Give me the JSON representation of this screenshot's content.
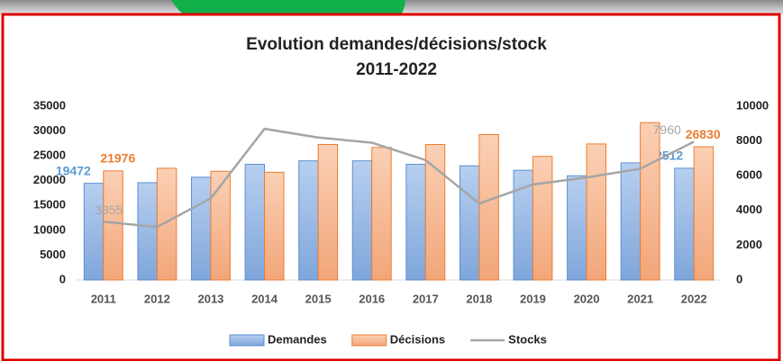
{
  "chart_data": {
    "type": "bar-line",
    "title": "Evolution  demandes/décisions/stock",
    "subtitle": "2011-2022",
    "categories": [
      "2011",
      "2012",
      "2013",
      "2014",
      "2015",
      "2016",
      "2017",
      "2018",
      "2019",
      "2020",
      "2021",
      "2022"
    ],
    "series": [
      {
        "name": "Demandes",
        "type": "bar",
        "color": "#8fb4e3",
        "edge": "#5b8fd0",
        "values": [
          19472,
          19600,
          20700,
          23300,
          24000,
          24000,
          23300,
          23000,
          22100,
          21000,
          23600,
          22512
        ],
        "value_labels": [
          "19472",
          null,
          null,
          null,
          null,
          null,
          null,
          null,
          null,
          null,
          null,
          "22512"
        ],
        "label_color": "#5b9bd5"
      },
      {
        "name": "Décisions",
        "type": "bar",
        "color": "#f4b183",
        "edge": "#ed7d31",
        "values": [
          21976,
          22500,
          21900,
          21700,
          27300,
          26700,
          27300,
          29300,
          24900,
          27400,
          31700,
          26830
        ],
        "value_labels": [
          "21976",
          null,
          null,
          null,
          null,
          null,
          null,
          null,
          null,
          null,
          null,
          "26830"
        ],
        "label_color": "#ed7d31"
      },
      {
        "name": "Stocks",
        "type": "line",
        "axis": "y2",
        "color": "#a5a5a5",
        "values": [
          3355,
          3050,
          4700,
          8700,
          8200,
          7900,
          6900,
          4400,
          5500,
          5900,
          6400,
          7960
        ],
        "value_labels": [
          "3355",
          null,
          null,
          null,
          null,
          null,
          null,
          null,
          null,
          null,
          null,
          "7960"
        ],
        "label_color": "#a5a5a5"
      }
    ],
    "ylim": [
      0,
      35000
    ],
    "yticks": [
      0,
      5000,
      10000,
      15000,
      20000,
      25000,
      30000,
      35000
    ],
    "y2lim": [
      0,
      10000
    ],
    "y2ticks": [
      0,
      2000,
      4000,
      6000,
      8000,
      10000
    ],
    "legend": "bottom"
  }
}
